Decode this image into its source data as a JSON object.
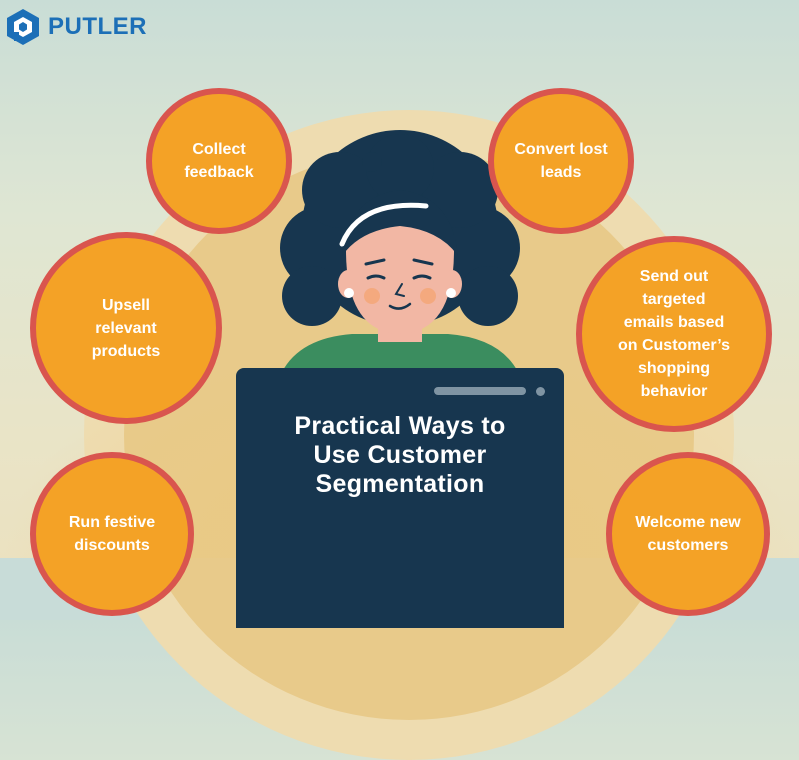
{
  "brand": {
    "name": "PUTLER",
    "color": "#1c6fb7"
  },
  "colors": {
    "bubble_fill": "#f4a226",
    "bubble_border": "#d9554e",
    "laptop": "#17364f"
  },
  "title": "Practical Ways to\nUse Customer\nSegmentation",
  "ways": [
    {
      "text": "Collect\nfeedback"
    },
    {
      "text": "Convert lost\nleads"
    },
    {
      "text": "Upsell\nrelevant\nproducts"
    },
    {
      "text": "Send out\ntargeted\nemails based\non Customer’s\nshopping\nbehavior"
    },
    {
      "text": "Run festive\ndiscounts"
    },
    {
      "text": "Welcome new\ncustomers"
    }
  ]
}
